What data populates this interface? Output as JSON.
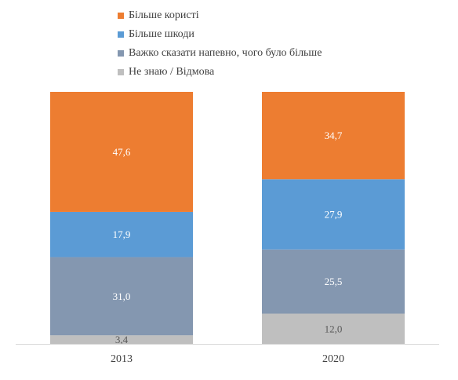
{
  "chart_data": {
    "type": "bar",
    "stacked": true,
    "normalized": true,
    "categories": [
      "2013",
      "2020"
    ],
    "series": [
      {
        "name": "Не знаю / Відмова",
        "values": [
          3.4,
          12.0
        ],
        "labels": [
          "3,4",
          "12,0"
        ],
        "color": "#bfbfbf"
      },
      {
        "name": "Важко сказати напевно, чого було більше",
        "values": [
          31.0,
          25.5
        ],
        "labels": [
          "31,0",
          "25,5"
        ],
        "color": "#8497b0"
      },
      {
        "name": "Більше шкоди",
        "values": [
          17.9,
          27.9
        ],
        "labels": [
          "17,9",
          "27,9"
        ],
        "color": "#5b9bd5"
      },
      {
        "name": "Більше користі",
        "values": [
          47.6,
          34.7
        ],
        "labels": [
          "47,6",
          "34,7"
        ],
        "color": "#ed7d31"
      }
    ],
    "legend_order": [
      "Більше користі",
      "Більше шкоди",
      "Важко сказати напевно, чого було більше",
      "Не знаю / Відмова"
    ],
    "legend_position": "top",
    "grid": false,
    "axis_line_color": "#d9d9d9",
    "label_color": "#404040"
  }
}
